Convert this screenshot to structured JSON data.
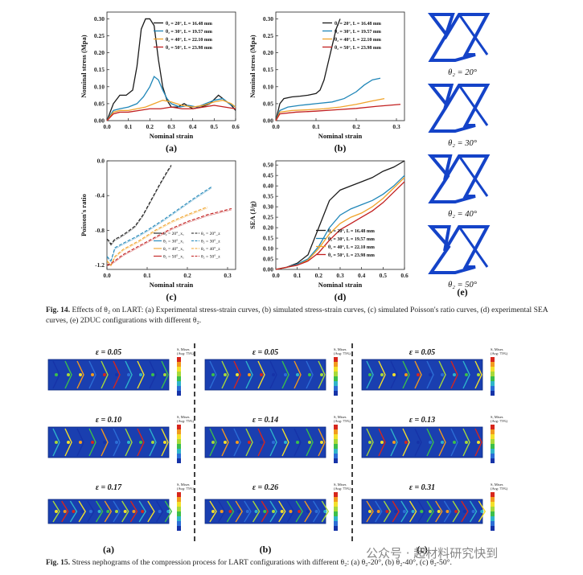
{
  "colors": {
    "s20": "#1a1a1a",
    "s30": "#1f86b8",
    "s40": "#f0a32a",
    "s50": "#c21f1f",
    "cell": "#1443c8"
  },
  "fig14": {
    "caption_label": "Fig. 14.",
    "caption_text": "Effects of θ₂ on LART: (a) Experimental stress-strain curves, (b) simulated stress-strain curves, (c) simulated Poisson's ratio curves, (d) experimental SEA curves, (e) 2DUC configurations with different θ₂.",
    "legend": [
      "θ₂ = 20°, L = 16.48 mm",
      "θ₂ = 30°, L = 19.57 mm",
      "θ₂ = 40°, L = 22.10 mm",
      "θ₂ = 50°, L = 23.98 mm"
    ],
    "configs": {
      "label": "(e)",
      "items": [
        "θ₂ = 20°",
        "θ₂ = 30°",
        "θ₂ = 40°",
        "θ₂ = 50°"
      ]
    }
  },
  "chart_data": [
    {
      "type": "line",
      "panel": "(a)",
      "xlabel": "Nominal strain",
      "ylabel": "Nominal stress (Mpa)",
      "xlim": [
        0,
        0.6
      ],
      "ylim": [
        0,
        0.32
      ],
      "xticks": [
        "0.0",
        "0.1",
        "0.2",
        "0.3",
        "0.4",
        "0.5",
        "0.6"
      ],
      "yticks": [
        "0.00",
        "0.05",
        "0.10",
        "0.15",
        "0.20",
        "0.25",
        "0.30"
      ],
      "series": [
        {
          "name": "θ₂ = 20°, L = 16.48 mm",
          "color": "#1a1a1a",
          "x": [
            0,
            0.03,
            0.06,
            0.09,
            0.12,
            0.14,
            0.16,
            0.18,
            0.2,
            0.22,
            0.24,
            0.26,
            0.28,
            0.3,
            0.33,
            0.36,
            0.4,
            0.44,
            0.48,
            0.52,
            0.55,
            0.58,
            0.6
          ],
          "y": [
            0,
            0.05,
            0.075,
            0.075,
            0.09,
            0.16,
            0.27,
            0.3,
            0.3,
            0.28,
            0.18,
            0.1,
            0.06,
            0.04,
            0.04,
            0.05,
            0.035,
            0.04,
            0.05,
            0.075,
            0.06,
            0.045,
            0.03
          ]
        },
        {
          "name": "θ₂ = 30°, L = 19.57 mm",
          "color": "#1f86b8",
          "x": [
            0,
            0.03,
            0.06,
            0.1,
            0.14,
            0.17,
            0.2,
            0.22,
            0.24,
            0.26,
            0.28,
            0.3,
            0.34,
            0.38,
            0.42,
            0.46,
            0.5,
            0.54,
            0.57,
            0.6
          ],
          "y": [
            0,
            0.03,
            0.035,
            0.04,
            0.05,
            0.07,
            0.1,
            0.13,
            0.12,
            0.09,
            0.065,
            0.05,
            0.04,
            0.045,
            0.04,
            0.05,
            0.06,
            0.065,
            0.05,
            0.04
          ]
        },
        {
          "name": "θ₂ = 40°, L = 22.10 mm",
          "color": "#f0a32a",
          "x": [
            0,
            0.03,
            0.06,
            0.1,
            0.14,
            0.18,
            0.22,
            0.26,
            0.3,
            0.35,
            0.4,
            0.45,
            0.5,
            0.54,
            0.58,
            0.6
          ],
          "y": [
            0,
            0.025,
            0.03,
            0.03,
            0.035,
            0.04,
            0.05,
            0.06,
            0.055,
            0.045,
            0.04,
            0.045,
            0.055,
            0.06,
            0.05,
            0.04
          ]
        },
        {
          "name": "θ₂ = 50°, L = 23.98 mm",
          "color": "#c21f1f",
          "x": [
            0,
            0.03,
            0.06,
            0.1,
            0.15,
            0.2,
            0.25,
            0.3,
            0.35,
            0.4,
            0.45,
            0.5,
            0.55,
            0.6
          ],
          "y": [
            0,
            0.02,
            0.025,
            0.025,
            0.03,
            0.035,
            0.035,
            0.04,
            0.035,
            0.035,
            0.04,
            0.045,
            0.04,
            0.035
          ]
        }
      ]
    },
    {
      "type": "line",
      "panel": "(b)",
      "xlabel": "Nominal strain",
      "ylabel": "Nominal stress (Mpa)",
      "xlim": [
        0,
        0.32
      ],
      "ylim": [
        0,
        0.32
      ],
      "xticks": [
        "0.0",
        "0.1",
        "0.2",
        "0.3"
      ],
      "yticks": [
        "0.00",
        "0.05",
        "0.10",
        "0.15",
        "0.20",
        "0.25",
        "0.30"
      ],
      "series": [
        {
          "name": "θ₂ = 20°, L = 16.48 mm",
          "color": "#1a1a1a",
          "x": [
            0,
            0.01,
            0.02,
            0.04,
            0.06,
            0.08,
            0.1,
            0.11,
            0.12,
            0.13,
            0.14,
            0.15,
            0.16
          ],
          "y": [
            0,
            0.05,
            0.065,
            0.07,
            0.072,
            0.075,
            0.08,
            0.09,
            0.12,
            0.17,
            0.22,
            0.27,
            0.3
          ]
        },
        {
          "name": "θ₂ = 30°, L = 19.57 mm",
          "color": "#1f86b8",
          "x": [
            0,
            0.01,
            0.03,
            0.06,
            0.1,
            0.14,
            0.17,
            0.2,
            0.22,
            0.24,
            0.26
          ],
          "y": [
            0,
            0.03,
            0.04,
            0.045,
            0.05,
            0.055,
            0.065,
            0.085,
            0.105,
            0.12,
            0.125
          ]
        },
        {
          "name": "θ₂ = 40°, L = 22.10 mm",
          "color": "#f0a32a",
          "x": [
            0,
            0.01,
            0.04,
            0.08,
            0.12,
            0.16,
            0.2,
            0.24,
            0.27
          ],
          "y": [
            0,
            0.025,
            0.03,
            0.032,
            0.035,
            0.04,
            0.048,
            0.058,
            0.065
          ]
        },
        {
          "name": "θ₂ = 50°, L = 23.98 mm",
          "color": "#c21f1f",
          "x": [
            0,
            0.01,
            0.05,
            0.1,
            0.15,
            0.2,
            0.25,
            0.31
          ],
          "y": [
            0,
            0.02,
            0.025,
            0.028,
            0.032,
            0.036,
            0.042,
            0.048
          ]
        }
      ]
    },
    {
      "type": "line",
      "panel": "(c)",
      "xlabel": "Nominal strain",
      "ylabel": "Poisson's ratio",
      "xlim": [
        0,
        0.32
      ],
      "ylim": [
        -1.25,
        0
      ],
      "xticks": [
        "0.0",
        "0.1",
        "0.2",
        "0.3"
      ],
      "yticks": [
        "0.0",
        "-0.4",
        "-0.8",
        "-1.2"
      ],
      "legend": [
        "θ₂ = 20°_x₁",
        "θ₂ = 20°_z",
        "θ₂ = 30°_x₁",
        "θ₂ = 30°_z",
        "θ₂ = 40°_x₁",
        "θ₂ = 40°_z",
        "θ₂ = 50°_x₁",
        "θ₂ = 50°_z"
      ],
      "series": [
        {
          "name": "θ₂ = 20°",
          "color": "#1a1a1a",
          "x": [
            0,
            0.005,
            0.01,
            0.02,
            0.03,
            0.05,
            0.07,
            0.09,
            0.11,
            0.13,
            0.15,
            0.16
          ],
          "y": [
            -0.9,
            -0.92,
            -0.96,
            -0.9,
            -0.88,
            -0.82,
            -0.75,
            -0.62,
            -0.45,
            -0.28,
            -0.12,
            -0.05
          ]
        },
        {
          "name": "θ₂ = 30°",
          "color": "#1f86b8",
          "x": [
            0,
            0.01,
            0.02,
            0.04,
            0.07,
            0.1,
            0.14,
            0.18,
            0.22,
            0.26
          ],
          "y": [
            -1.1,
            -1.15,
            -1.0,
            -0.95,
            -0.88,
            -0.8,
            -0.68,
            -0.55,
            -0.42,
            -0.3
          ]
        },
        {
          "name": "θ₂ = 40°",
          "color": "#f0a32a",
          "x": [
            0,
            0.01,
            0.02,
            0.04,
            0.08,
            0.12,
            0.16,
            0.2,
            0.25
          ],
          "y": [
            -1.15,
            -1.2,
            -1.1,
            -1.02,
            -0.92,
            -0.8,
            -0.7,
            -0.62,
            -0.53
          ]
        },
        {
          "name": "θ₂ = 50°",
          "color": "#c21f1f",
          "x": [
            0,
            0.01,
            0.02,
            0.04,
            0.08,
            0.12,
            0.16,
            0.2,
            0.25,
            0.31
          ],
          "y": [
            -1.2,
            -1.18,
            -1.15,
            -1.08,
            -0.98,
            -0.88,
            -0.78,
            -0.7,
            -0.62,
            -0.55
          ]
        }
      ]
    },
    {
      "type": "line",
      "panel": "(d)",
      "xlabel": "Nominal strain",
      "ylabel": "SEA (J/g)",
      "xlim": [
        0,
        0.6
      ],
      "ylim": [
        0,
        0.52
      ],
      "xticks": [
        "0.0",
        "0.1",
        "0.2",
        "0.3",
        "0.4",
        "0.5",
        "0.6"
      ],
      "yticks": [
        "0.00",
        "0.05",
        "0.10",
        "0.15",
        "0.20",
        "0.25",
        "0.30",
        "0.35",
        "0.40",
        "0.45",
        "0.50"
      ],
      "series": [
        {
          "name": "θ₂ = 20°, L = 16.48 mm",
          "color": "#1a1a1a",
          "x": [
            0,
            0.05,
            0.1,
            0.15,
            0.2,
            0.25,
            0.3,
            0.35,
            0.4,
            0.45,
            0.5,
            0.55,
            0.6
          ],
          "y": [
            0,
            0.01,
            0.03,
            0.07,
            0.2,
            0.33,
            0.38,
            0.4,
            0.42,
            0.44,
            0.47,
            0.49,
            0.52
          ]
        },
        {
          "name": "θ₂ = 30°, L = 19.57 mm",
          "color": "#1f86b8",
          "x": [
            0,
            0.05,
            0.1,
            0.15,
            0.2,
            0.25,
            0.3,
            0.35,
            0.4,
            0.45,
            0.5,
            0.55,
            0.6
          ],
          "y": [
            0,
            0.01,
            0.025,
            0.05,
            0.11,
            0.2,
            0.26,
            0.29,
            0.31,
            0.33,
            0.36,
            0.4,
            0.45
          ]
        },
        {
          "name": "θ₂ = 40°, L = 22.10 mm",
          "color": "#f0a32a",
          "x": [
            0,
            0.05,
            0.1,
            0.15,
            0.2,
            0.25,
            0.3,
            0.35,
            0.4,
            0.45,
            0.5,
            0.55,
            0.6
          ],
          "y": [
            0,
            0.01,
            0.02,
            0.045,
            0.1,
            0.17,
            0.22,
            0.25,
            0.27,
            0.3,
            0.34,
            0.39,
            0.44
          ]
        },
        {
          "name": "θ₂ = 50°, L = 23.98 mm",
          "color": "#c21f1f",
          "x": [
            0,
            0.05,
            0.1,
            0.15,
            0.2,
            0.25,
            0.3,
            0.35,
            0.4,
            0.45,
            0.5,
            0.55,
            0.6
          ],
          "y": [
            0,
            0.01,
            0.02,
            0.04,
            0.08,
            0.14,
            0.19,
            0.22,
            0.25,
            0.28,
            0.32,
            0.37,
            0.42
          ]
        }
      ]
    }
  ],
  "fig15": {
    "caption_label": "Fig. 15.",
    "caption_text": "Stress nephograms of the compression process for LART configurations with different θ₂: (a) θ₂-20°, (b) θ₂-40°, (c) θ₂-50°.",
    "columns": [
      {
        "label": "(a)",
        "strains": [
          "ε = 0.05",
          "ε = 0.10",
          "ε = 0.17"
        ]
      },
      {
        "label": "(b)",
        "strains": [
          "ε = 0.05",
          "ε = 0.14",
          "ε = 0.26"
        ]
      },
      {
        "label": "(c)",
        "strains": [
          "ε = 0.05",
          "ε = 0.13",
          "ε = 0.31"
        ]
      }
    ],
    "legend_title": "S, Mises",
    "legend_sub": "(Avg: 75%)"
  },
  "watermark": "公众号 · 超材料研究快到"
}
